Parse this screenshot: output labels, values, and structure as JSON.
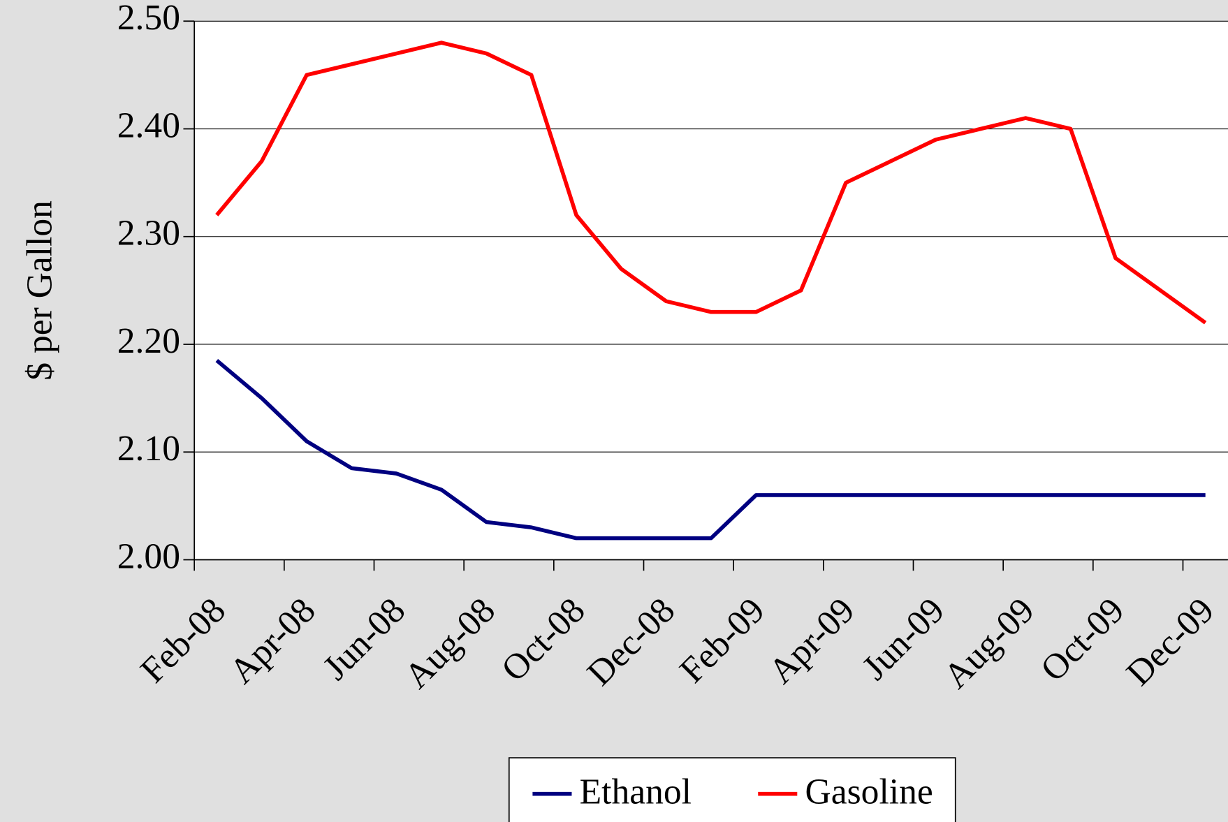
{
  "chart_data": {
    "type": "line",
    "y_label": "$ per Gallon",
    "categories": [
      "Feb-08",
      null,
      "Apr-08",
      null,
      "Jun-08",
      null,
      "Aug-08",
      null,
      "Oct-08",
      null,
      "Dec-08",
      null,
      "Feb-09",
      null,
      "Apr-09",
      null,
      "Jun-09",
      null,
      "Aug-09",
      null,
      "Oct-09",
      null,
      "Dec-09"
    ],
    "series": [
      {
        "name": "Ethanol",
        "color": "#000080",
        "values": [
          2.185,
          2.15,
          2.11,
          2.085,
          2.08,
          2.065,
          2.035,
          2.03,
          2.02,
          2.02,
          2.02,
          2.02,
          2.06,
          2.06,
          2.06,
          2.06,
          2.06,
          2.06,
          2.06,
          2.06,
          2.06,
          2.06,
          2.06
        ]
      },
      {
        "name": "Gasoline",
        "color": "#ff0000",
        "values": [
          2.32,
          2.37,
          2.45,
          2.46,
          2.47,
          2.48,
          2.47,
          2.45,
          2.32,
          2.27,
          2.24,
          2.23,
          2.23,
          2.25,
          2.35,
          2.37,
          2.39,
          2.4,
          2.41,
          2.4,
          2.28,
          2.25,
          2.22
        ]
      }
    ],
    "ylim": [
      2.0,
      2.5
    ],
    "yticks": [
      {
        "value": 2.0,
        "label": "2.00"
      },
      {
        "value": 2.1,
        "label": "2.10"
      },
      {
        "value": 2.2,
        "label": "2.20"
      },
      {
        "value": 2.3,
        "label": "2.30"
      },
      {
        "value": 2.4,
        "label": "2.40"
      },
      {
        "value": 2.5,
        "label": "2.50"
      }
    ],
    "grid": true,
    "legend": "bottom"
  }
}
